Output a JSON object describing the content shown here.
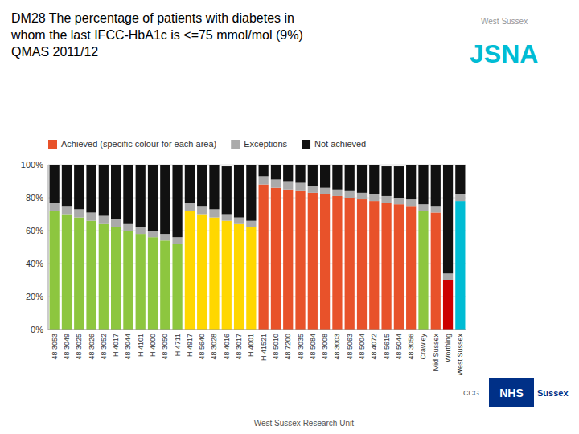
{
  "chart_data": {
    "type": "bar",
    "stacked": true,
    "title": "DM28 The percentage of patients with diabetes in\nwhom the last IFCC-HbA1c is <=75 mmol/mol (9%)\nQMAS 2011/12",
    "categories": [
      "48 3053",
      "48 3049",
      "48 3025",
      "48 3026",
      "48 3052",
      "H 4017",
      "48 3044",
      "H 4101",
      "H 4000",
      "48 3050",
      "H 4711",
      "H 4917",
      "48 5640",
      "48 3028",
      "48 4016",
      "48 3017",
      "H 4001",
      "H 41521",
      "48 5010",
      "48 7200",
      "48 3035",
      "48 5084",
      "48 3008",
      "48 3003",
      "48 5063",
      "48 5004",
      "48 4072",
      "48 5615",
      "48 5044",
      "48 3056",
      "Crawley",
      "Mid Sussex",
      "Worthing",
      "West Sussex"
    ],
    "series": [
      {
        "name": "Achieved (specific colour for each area)",
        "color": "#e8522a",
        "colors": [
          "#8dc63f",
          "#8dc63f",
          "#8dc63f",
          "#8dc63f",
          "#8dc63f",
          "#8dc63f",
          "#8dc63f",
          "#8dc63f",
          "#8dc63f",
          "#8dc63f",
          "#8dc63f",
          "#ffd700",
          "#ffd700",
          "#ffd700",
          "#ffd700",
          "#ffd700",
          "#ffd700",
          "#e8522a",
          "#e8522a",
          "#e8522a",
          "#e8522a",
          "#e8522a",
          "#e8522a",
          "#e8522a",
          "#e8522a",
          "#e8522a",
          "#e8522a",
          "#e8522a",
          "#e8522a",
          "#e8522a",
          "#8dc63f",
          "#e8522a",
          "#cc0000",
          "#00bcd4"
        ],
        "values": [
          72,
          70,
          68,
          66,
          64,
          62,
          60,
          58,
          56,
          54,
          52,
          72,
          70,
          68,
          66,
          64,
          62,
          88,
          86,
          85,
          84,
          83,
          82,
          81,
          80,
          79,
          78,
          77,
          76,
          75,
          72,
          71,
          30,
          78
        ]
      },
      {
        "name": "Exceptions",
        "color": "#aaaaaa",
        "values": [
          5,
          5,
          5,
          5,
          5,
          5,
          4,
          4,
          4,
          4,
          4,
          5,
          5,
          5,
          4,
          4,
          4,
          5,
          5,
          5,
          5,
          4,
          4,
          4,
          4,
          4,
          4,
          4,
          4,
          4,
          4,
          4,
          4,
          4
        ]
      },
      {
        "name": "Not achieved",
        "color": "#111111",
        "values": [
          23,
          25,
          27,
          29,
          31,
          33,
          36,
          38,
          40,
          42,
          44,
          23,
          25,
          27,
          29,
          32,
          34,
          7,
          9,
          10,
          11,
          13,
          14,
          15,
          16,
          17,
          18,
          18,
          19,
          21,
          24,
          25,
          66,
          18
        ]
      }
    ],
    "ylim": [
      0,
      100
    ],
    "yticks": [
      {
        "value": 0,
        "label": "0%"
      },
      {
        "value": 20,
        "label": "20%"
      },
      {
        "value": 40,
        "label": "40%"
      },
      {
        "value": 60,
        "label": "60%"
      },
      {
        "value": 80,
        "label": "80%"
      },
      {
        "value": 100,
        "label": "100%"
      }
    ],
    "grid": true,
    "legend": "upper left",
    "annotations": [
      "West Sussex",
      "JSNA",
      "NHS",
      "Sussex",
      "CCG",
      "West Sussex Research Unit"
    ]
  }
}
